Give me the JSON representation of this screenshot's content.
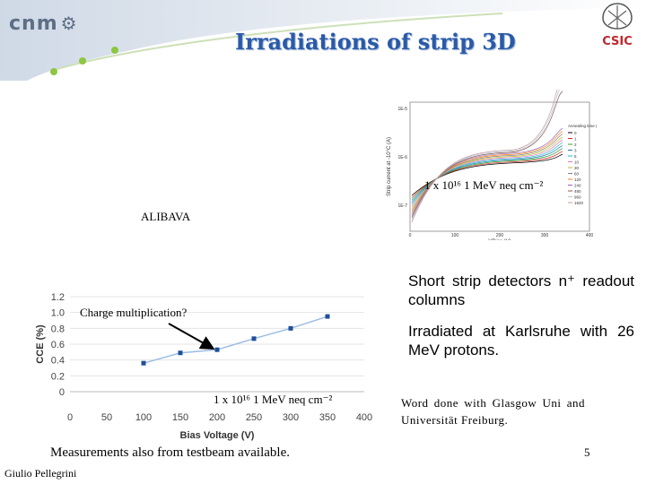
{
  "header": {
    "logo_text": "cnm",
    "title": "Irradiations of strip 3D",
    "right_logo_text": "CSIC"
  },
  "labels": {
    "fluence_top": "1 x 10¹⁶ 1 MeV neq cm⁻²",
    "alibava": "ALIBAVA",
    "charge_mult": "Charge multiplication?",
    "fluence_bottom": "1 x 10¹⁶ 1 MeV neq cm⁻²",
    "measurements": "Measurements also from testbeam available.",
    "author": "Giulio Pellegrini",
    "page_number": "5"
  },
  "text_blocks": {
    "short_strip": "Short strip detectors n⁺ readout columns",
    "irradiated": "Irradiated at Karlsruhe with 26 MeV protons.",
    "work_done": "Word done with Glasgow Uni and Universität Freiburg."
  },
  "colors": {
    "title": "#2a5aa8",
    "line_bottom": "#9dbde3",
    "points_bottom": "#1f4e9a",
    "csic_red": "#c0282e"
  },
  "chart_data": [
    {
      "type": "line",
      "title": "",
      "xlabel": "Bias Voltage (V)",
      "ylabel": "CCE (%)",
      "xlim": [
        0,
        400
      ],
      "ylim": [
        0,
        1.2
      ],
      "x_ticks": [
        "0",
        "50",
        "100",
        "150",
        "200",
        "250",
        "300",
        "350",
        "400"
      ],
      "y_ticks": [
        "0",
        "0.2",
        "0.4",
        "0.6",
        "0.8",
        "1.0",
        "1.2"
      ],
      "series": [
        {
          "name": "CCE",
          "x": [
            100,
            150,
            200,
            250,
            300,
            350
          ],
          "y": [
            0.36,
            0.49,
            0.53,
            0.67,
            0.8,
            0.95
          ]
        }
      ]
    },
    {
      "type": "line",
      "title": "",
      "xlabel": "VBias (V)",
      "ylabel": "Strip current at -10°C (A)",
      "xlim": [
        0,
        400
      ],
      "y_ticks": [
        "1E-5",
        "1E-6",
        "1E-7"
      ],
      "x_ticks": [
        "0",
        "100",
        "200",
        "300",
        "400"
      ],
      "legend_title": "Annealing time (days)",
      "legend": [
        "0",
        "1",
        "2",
        "3",
        "5",
        "10",
        "30",
        "60",
        "120",
        "240",
        "480",
        "960",
        "1920"
      ]
    }
  ]
}
